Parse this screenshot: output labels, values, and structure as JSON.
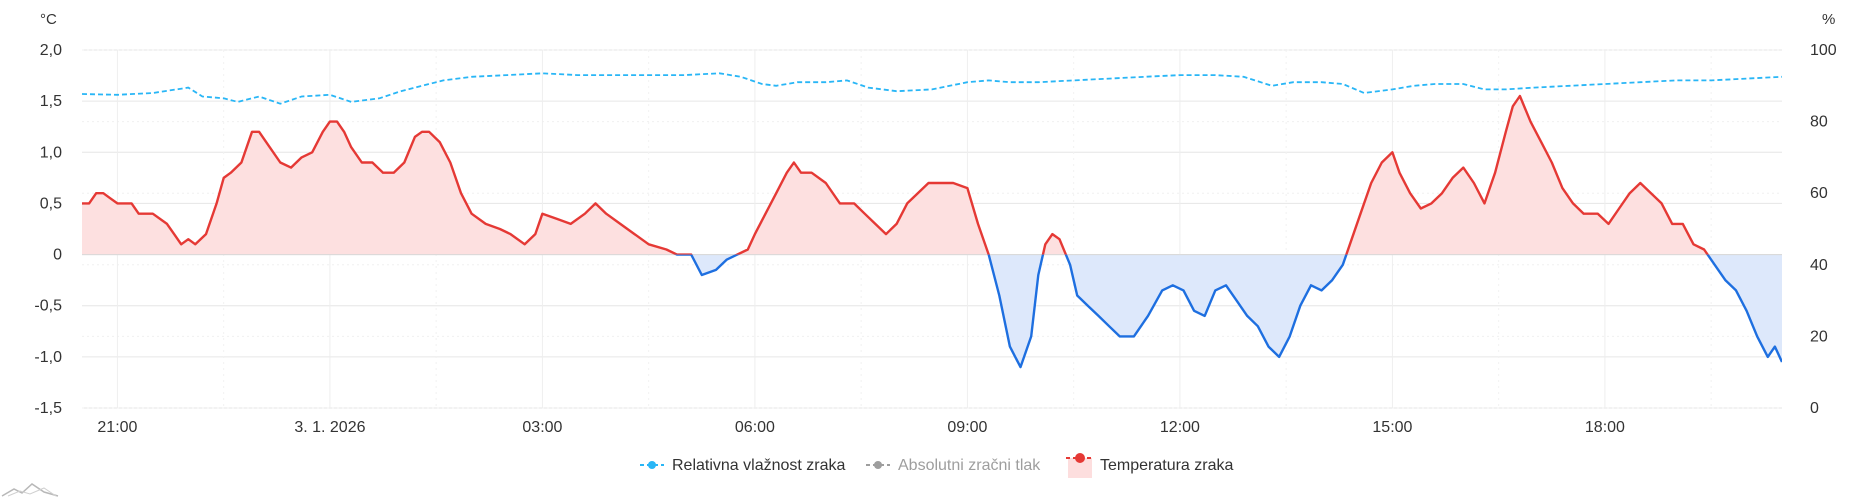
{
  "chart_data": {
    "type": "line",
    "title": "",
    "y_left": {
      "unit": "°C",
      "min": -1.5,
      "max": 2.0,
      "ticks": [
        2.0,
        1.5,
        1.0,
        0.5,
        0,
        -0.5,
        -1.0,
        -1.5
      ],
      "tick_labels": [
        "2,0",
        "1,5",
        "1,0",
        "0,5",
        "0",
        "-0,5",
        "-1,0",
        "-1,5"
      ]
    },
    "y_right": {
      "unit": "%",
      "min": 0,
      "max": 100,
      "ticks": [
        100,
        80,
        60,
        40,
        20,
        0
      ],
      "tick_labels": [
        "100",
        "80",
        "60",
        "40",
        "20",
        "0"
      ]
    },
    "x_axis": {
      "start_hour": 20.5,
      "end_hour": 44.5,
      "ticks": [
        {
          "hour": 21,
          "label": "21:00"
        },
        {
          "hour": 24,
          "label": "3. 1. 2026"
        },
        {
          "hour": 27,
          "label": "03:00"
        },
        {
          "hour": 30,
          "label": "06:00"
        },
        {
          "hour": 33,
          "label": "09:00"
        },
        {
          "hour": 36,
          "label": "12:00"
        },
        {
          "hour": 39,
          "label": "15:00"
        },
        {
          "hour": 42,
          "label": "18:00"
        }
      ]
    },
    "series": [
      {
        "name": "Relativna vlažnost zraka",
        "axis": "right",
        "style": "dashed",
        "color": "#29b6f6",
        "points": [
          [
            20.5,
            87.7
          ],
          [
            21,
            87.5
          ],
          [
            21.5,
            88
          ],
          [
            22,
            89.5
          ],
          [
            22.2,
            87
          ],
          [
            22.5,
            86.5
          ],
          [
            22.7,
            85.5
          ],
          [
            23,
            87
          ],
          [
            23.3,
            85
          ],
          [
            23.6,
            87
          ],
          [
            24,
            87.5
          ],
          [
            24.3,
            85.5
          ],
          [
            24.7,
            86.5
          ],
          [
            25,
            88.5
          ],
          [
            25.3,
            90
          ],
          [
            25.6,
            91.5
          ],
          [
            26,
            92.5
          ],
          [
            26.5,
            93
          ],
          [
            27,
            93.5
          ],
          [
            27.5,
            93
          ],
          [
            28,
            93
          ],
          [
            28.5,
            93
          ],
          [
            29,
            93
          ],
          [
            29.5,
            93.5
          ],
          [
            29.8,
            92.5
          ],
          [
            30.1,
            90.5
          ],
          [
            30.3,
            90
          ],
          [
            30.6,
            91
          ],
          [
            31,
            91
          ],
          [
            31.3,
            91.5
          ],
          [
            31.6,
            89.5
          ],
          [
            32,
            88.5
          ],
          [
            32.5,
            89
          ],
          [
            33,
            91
          ],
          [
            33.3,
            91.5
          ],
          [
            33.6,
            91
          ],
          [
            34,
            91
          ],
          [
            34.5,
            91.5
          ],
          [
            35,
            92
          ],
          [
            35.5,
            92.5
          ],
          [
            36,
            93
          ],
          [
            36.5,
            93
          ],
          [
            36.9,
            92.5
          ],
          [
            37.3,
            90
          ],
          [
            37.6,
            91
          ],
          [
            38,
            91
          ],
          [
            38.3,
            90.5
          ],
          [
            38.6,
            88
          ],
          [
            39,
            89
          ],
          [
            39.3,
            90
          ],
          [
            39.6,
            90.5
          ],
          [
            40,
            90.5
          ],
          [
            40.3,
            89
          ],
          [
            40.6,
            89
          ],
          [
            41,
            89.5
          ],
          [
            41.5,
            90
          ],
          [
            42,
            90.5
          ],
          [
            42.5,
            91
          ],
          [
            43,
            91.5
          ],
          [
            43.5,
            91.5
          ],
          [
            44,
            92
          ],
          [
            44.5,
            92.5
          ]
        ]
      },
      {
        "name": "Absolutni zračni tlak",
        "axis": "right",
        "style": "dashed",
        "color": "#9e9e9e",
        "muted": true,
        "points": []
      },
      {
        "name": "Temperatura zraka",
        "axis": "left",
        "style": "area",
        "color_pos": "#e53935",
        "color_neg": "#1e6fe0",
        "fill_pos": "#fde0e0",
        "fill_neg": "#dde8fb",
        "points": [
          [
            20.5,
            0.5
          ],
          [
            20.6,
            0.5
          ],
          [
            20.7,
            0.6
          ],
          [
            20.8,
            0.6
          ],
          [
            20.9,
            0.55
          ],
          [
            21,
            0.5
          ],
          [
            21.2,
            0.5
          ],
          [
            21.3,
            0.4
          ],
          [
            21.5,
            0.4
          ],
          [
            21.7,
            0.3
          ],
          [
            21.8,
            0.2
          ],
          [
            21.9,
            0.1
          ],
          [
            22.0,
            0.15
          ],
          [
            22.1,
            0.1
          ],
          [
            22.25,
            0.2
          ],
          [
            22.4,
            0.5
          ],
          [
            22.5,
            0.75
          ],
          [
            22.6,
            0.8
          ],
          [
            22.75,
            0.9
          ],
          [
            22.9,
            1.2
          ],
          [
            23.0,
            1.2
          ],
          [
            23.15,
            1.05
          ],
          [
            23.3,
            0.9
          ],
          [
            23.45,
            0.85
          ],
          [
            23.6,
            0.95
          ],
          [
            23.75,
            1.0
          ],
          [
            23.9,
            1.2
          ],
          [
            24.0,
            1.3
          ],
          [
            24.1,
            1.3
          ],
          [
            24.2,
            1.2
          ],
          [
            24.3,
            1.05
          ],
          [
            24.45,
            0.9
          ],
          [
            24.6,
            0.9
          ],
          [
            24.75,
            0.8
          ],
          [
            24.9,
            0.8
          ],
          [
            25.05,
            0.9
          ],
          [
            25.2,
            1.15
          ],
          [
            25.3,
            1.2
          ],
          [
            25.4,
            1.2
          ],
          [
            25.55,
            1.1
          ],
          [
            25.7,
            0.9
          ],
          [
            25.85,
            0.6
          ],
          [
            26.0,
            0.4
          ],
          [
            26.2,
            0.3
          ],
          [
            26.4,
            0.25
          ],
          [
            26.55,
            0.2
          ],
          [
            26.75,
            0.1
          ],
          [
            26.9,
            0.2
          ],
          [
            27.0,
            0.4
          ],
          [
            27.2,
            0.35
          ],
          [
            27.4,
            0.3
          ],
          [
            27.6,
            0.4
          ],
          [
            27.75,
            0.5
          ],
          [
            27.9,
            0.4
          ],
          [
            28.1,
            0.3
          ],
          [
            28.3,
            0.2
          ],
          [
            28.5,
            0.1
          ],
          [
            28.75,
            0.05
          ],
          [
            28.9,
            0.0
          ],
          [
            29.1,
            0.0
          ],
          [
            29.25,
            -0.2
          ],
          [
            29.45,
            -0.15
          ],
          [
            29.6,
            -0.05
          ],
          [
            29.75,
            0.0
          ],
          [
            29.9,
            0.05
          ],
          [
            30.0,
            0.2
          ],
          [
            30.15,
            0.4
          ],
          [
            30.3,
            0.6
          ],
          [
            30.45,
            0.8
          ],
          [
            30.55,
            0.9
          ],
          [
            30.65,
            0.8
          ],
          [
            30.8,
            0.8
          ],
          [
            31.0,
            0.7
          ],
          [
            31.2,
            0.5
          ],
          [
            31.4,
            0.5
          ],
          [
            31.55,
            0.4
          ],
          [
            31.7,
            0.3
          ],
          [
            31.85,
            0.2
          ],
          [
            32.0,
            0.3
          ],
          [
            32.15,
            0.5
          ],
          [
            32.3,
            0.6
          ],
          [
            32.45,
            0.7
          ],
          [
            32.6,
            0.7
          ],
          [
            32.8,
            0.7
          ],
          [
            33.0,
            0.65
          ],
          [
            33.15,
            0.3
          ],
          [
            33.3,
            0.0
          ],
          [
            33.45,
            -0.4
          ],
          [
            33.6,
            -0.9
          ],
          [
            33.75,
            -1.1
          ],
          [
            33.9,
            -0.8
          ],
          [
            34.0,
            -0.2
          ],
          [
            34.1,
            0.1
          ],
          [
            34.2,
            0.2
          ],
          [
            34.3,
            0.15
          ],
          [
            34.45,
            -0.1
          ],
          [
            34.55,
            -0.4
          ],
          [
            34.7,
            -0.5
          ],
          [
            34.85,
            -0.6
          ],
          [
            35.0,
            -0.7
          ],
          [
            35.15,
            -0.8
          ],
          [
            35.35,
            -0.8
          ],
          [
            35.55,
            -0.6
          ],
          [
            35.75,
            -0.35
          ],
          [
            35.9,
            -0.3
          ],
          [
            36.05,
            -0.35
          ],
          [
            36.2,
            -0.55
          ],
          [
            36.35,
            -0.6
          ],
          [
            36.5,
            -0.35
          ],
          [
            36.65,
            -0.3
          ],
          [
            36.8,
            -0.45
          ],
          [
            36.95,
            -0.6
          ],
          [
            37.1,
            -0.7
          ],
          [
            37.25,
            -0.9
          ],
          [
            37.4,
            -1.0
          ],
          [
            37.55,
            -0.8
          ],
          [
            37.7,
            -0.5
          ],
          [
            37.85,
            -0.3
          ],
          [
            38.0,
            -0.35
          ],
          [
            38.15,
            -0.25
          ],
          [
            38.3,
            -0.1
          ],
          [
            38.4,
            0.1
          ],
          [
            38.55,
            0.4
          ],
          [
            38.7,
            0.7
          ],
          [
            38.85,
            0.9
          ],
          [
            39.0,
            1.0
          ],
          [
            39.1,
            0.8
          ],
          [
            39.25,
            0.6
          ],
          [
            39.4,
            0.45
          ],
          [
            39.55,
            0.5
          ],
          [
            39.7,
            0.6
          ],
          [
            39.85,
            0.75
          ],
          [
            40.0,
            0.85
          ],
          [
            40.15,
            0.7
          ],
          [
            40.3,
            0.5
          ],
          [
            40.45,
            0.8
          ],
          [
            40.6,
            1.2
          ],
          [
            40.7,
            1.45
          ],
          [
            40.8,
            1.55
          ],
          [
            40.95,
            1.3
          ],
          [
            41.1,
            1.1
          ],
          [
            41.25,
            0.9
          ],
          [
            41.4,
            0.65
          ],
          [
            41.55,
            0.5
          ],
          [
            41.7,
            0.4
          ],
          [
            41.9,
            0.4
          ],
          [
            42.05,
            0.3
          ],
          [
            42.2,
            0.45
          ],
          [
            42.35,
            0.6
          ],
          [
            42.5,
            0.7
          ],
          [
            42.65,
            0.6
          ],
          [
            42.8,
            0.5
          ],
          [
            42.95,
            0.3
          ],
          [
            43.1,
            0.3
          ],
          [
            43.25,
            0.1
          ],
          [
            43.4,
            0.05
          ],
          [
            43.55,
            -0.1
          ],
          [
            43.7,
            -0.25
          ],
          [
            43.85,
            -0.35
          ],
          [
            44.0,
            -0.55
          ],
          [
            44.15,
            -0.8
          ],
          [
            44.3,
            -1.0
          ],
          [
            44.4,
            -0.9
          ],
          [
            44.5,
            -1.05
          ]
        ]
      }
    ],
    "legend": {
      "placement": "bottom"
    }
  },
  "colors": {
    "grid": "#e6e6e6",
    "axis_text": "#333333",
    "humidity": "#29b6f6",
    "pressure": "#9e9e9e",
    "temp_pos": "#e53935",
    "temp_neg": "#1e6fe0"
  },
  "icons": {
    "corner_logo": "mountain-logo-icon"
  }
}
